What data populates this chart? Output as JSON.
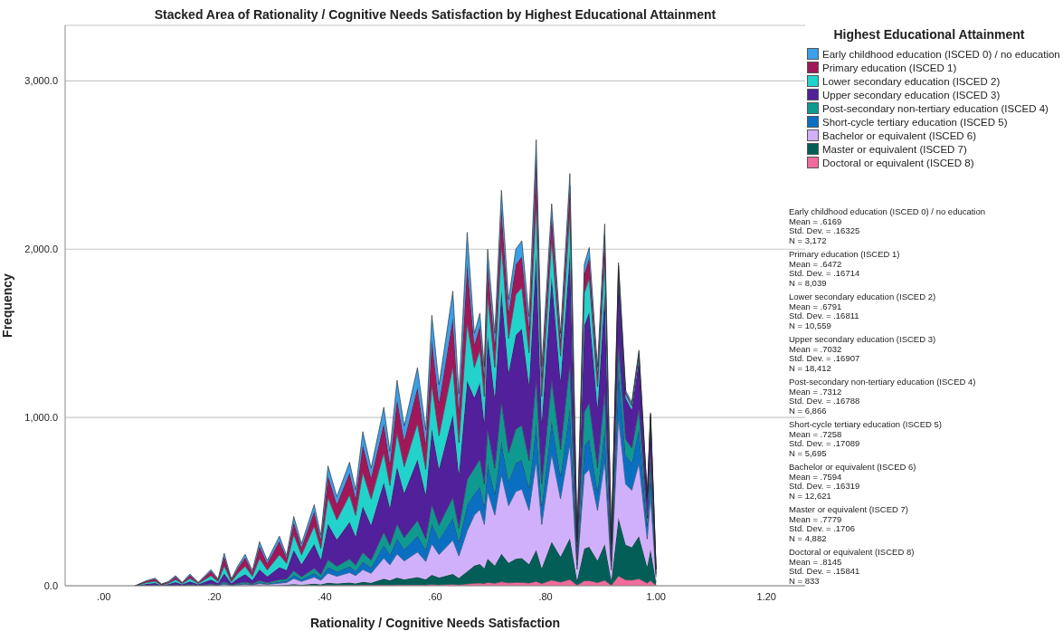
{
  "chart_data": {
    "type": "area",
    "stacked": true,
    "title": "Stacked Area of Rationality / Cognitive Needs Satisfaction by Highest Educational Attainment",
    "xlabel": "Rationality / Cognitive Needs Satisfaction",
    "ylabel": "Frequency",
    "legend_title": "Highest Educational Attainment",
    "legend": "top right",
    "grid": "y",
    "xlim": [
      -0.07,
      1.27
    ],
    "ylim": [
      0,
      3330
    ],
    "xticks": [
      {
        "value": 0,
        "label": ".00"
      },
      {
        "value": 0.2,
        "label": ".20"
      },
      {
        "value": 0.4,
        "label": ".40"
      },
      {
        "value": 0.6,
        "label": ".60"
      },
      {
        "value": 0.8,
        "label": ".80"
      },
      {
        "value": 1,
        "label": "1.00"
      },
      {
        "value": 1.2,
        "label": "1.20"
      }
    ],
    "yticks": [
      {
        "value": 0,
        "label": "0.0"
      },
      {
        "value": 1000,
        "label": "1,000.0"
      },
      {
        "value": 2000,
        "label": "2,000.0"
      },
      {
        "value": 3000,
        "label": "3,000.0"
      }
    ],
    "x": [
      0.057,
      0.077,
      0.093,
      0.104,
      0.117,
      0.13,
      0.142,
      0.156,
      0.171,
      0.194,
      0.207,
      0.218,
      0.231,
      0.243,
      0.256,
      0.269,
      0.282,
      0.296,
      0.318,
      0.331,
      0.344,
      0.358,
      0.381,
      0.393,
      0.406,
      0.422,
      0.445,
      0.456,
      0.469,
      0.484,
      0.507,
      0.518,
      0.531,
      0.544,
      0.568,
      0.583,
      0.594,
      0.607,
      0.632,
      0.643,
      0.658,
      0.671,
      0.681,
      0.689,
      0.695,
      0.708,
      0.72,
      0.733,
      0.746,
      0.757,
      0.77,
      0.783,
      0.793,
      0.811,
      0.827,
      0.844,
      0.857,
      0.87,
      0.879,
      0.894,
      0.907,
      0.919,
      0.932,
      0.945,
      0.956,
      0.969,
      0.984,
      0.99,
      1.0
    ],
    "series": [
      {
        "name": "Doctoral or equivalent (ISCED 8)",
        "color": "#f06c9c",
        "values": [
          0,
          0,
          0,
          0,
          0,
          0,
          0,
          0,
          0,
          0,
          0,
          0,
          0,
          0,
          0,
          0,
          0,
          0,
          0,
          1,
          2,
          1,
          2,
          2,
          4,
          3,
          4,
          3,
          5,
          4,
          5,
          4,
          6,
          5,
          6,
          5,
          8,
          6,
          9,
          6,
          11,
          15,
          16,
          13,
          20,
          15,
          24,
          17,
          20,
          20,
          16,
          26,
          13,
          34,
          22,
          37,
          4,
          29,
          30,
          19,
          32,
          4,
          58,
          35,
          33,
          42,
          16,
          31,
          3
        ]
      },
      {
        "name": "Master or equivalent (ISCED 7)",
        "color": "#035e58",
        "values": [
          0,
          0,
          0,
          0,
          0,
          1,
          0,
          1,
          0,
          1,
          0,
          2,
          0,
          1,
          2,
          1,
          3,
          2,
          3,
          4,
          8,
          5,
          10,
          6,
          14,
          11,
          15,
          11,
          18,
          14,
          37,
          28,
          43,
          33,
          45,
          32,
          56,
          42,
          61,
          40,
          74,
          105,
          113,
          91,
          140,
          105,
          165,
          119,
          140,
          144,
          112,
          186,
          91,
          227,
          150,
          245,
          28,
          191,
          201,
          130,
          215,
          27,
          346,
          209,
          196,
          252,
          96,
          185,
          18
        ]
      },
      {
        "name": "Bachelor or equivalent (ISCED 6)",
        "color": "#d1b0fb",
        "values": [
          0,
          1,
          2,
          0,
          1,
          2,
          1,
          3,
          1,
          4,
          2,
          8,
          2,
          5,
          7,
          4,
          10,
          6,
          12,
          14,
          33,
          20,
          39,
          24,
          57,
          42,
          59,
          46,
          73,
          56,
          122,
          92,
          140,
          109,
          149,
          107,
          185,
          137,
          201,
          131,
          241,
          300,
          324,
          260,
          400,
          300,
          470,
          340,
          400,
          410,
          320,
          530,
          260,
          522,
          345,
          563,
          65,
          439,
          462,
          299,
          495,
          62,
          595,
          360,
          338,
          434,
          166,
          319,
          31
        ]
      },
      {
        "name": "Short-cycle tertiary education (ISCED 5)",
        "color": "#0a6fc0",
        "values": [
          0,
          1,
          1,
          0,
          1,
          2,
          1,
          2,
          1,
          3,
          1,
          6,
          1,
          4,
          6,
          3,
          8,
          4,
          9,
          9,
          21,
          12,
          24,
          15,
          36,
          27,
          37,
          28,
          46,
          35,
          80,
          60,
          92,
          71,
          97,
          70,
          121,
          90,
          131,
          86,
          157,
          128,
          138,
          111,
          170,
          128,
          200,
          144,
          170,
          174,
          136,
          225,
          111,
          204,
          135,
          220,
          26,
          172,
          181,
          117,
          194,
          24,
          288,
          174,
          164,
          210,
          80,
          154,
          15
        ]
      },
      {
        "name": "Post-secondary non-tertiary education (ISCED 4)",
        "color": "#0f9a90",
        "values": [
          0,
          1,
          2,
          0,
          1,
          2,
          1,
          3,
          1,
          4,
          2,
          8,
          2,
          5,
          7,
          4,
          10,
          6,
          12,
          11,
          25,
          15,
          29,
          18,
          43,
          32,
          44,
          34,
          55,
          42,
          74,
          56,
          85,
          67,
          91,
          65,
          112,
          84,
          123,
          80,
          147,
          150,
          162,
          130,
          200,
          150,
          235,
          170,
          200,
          205,
          160,
          265,
          130,
          238,
          158,
          257,
          30,
          200,
          211,
          137,
          226,
          28,
          154,
          93,
          87,
          112,
          43,
          82,
          8
        ]
      },
      {
        "name": "Upper secondary education (ISCED 3)",
        "color": "#51209a",
        "values": [
          0,
          8,
          11,
          3,
          6,
          15,
          5,
          17,
          5,
          24,
          10,
          48,
          10,
          30,
          47,
          22,
          66,
          37,
          74,
          54,
          124,
          75,
          145,
          90,
          214,
          159,
          220,
          171,
          275,
          210,
          297,
          224,
          342,
          266,
          363,
          260,
          450,
          335,
          490,
          319,
          588,
          420,
          454,
          364,
          560,
          420,
          658,
          476,
          560,
          574,
          448,
          742,
          364,
          613,
          405,
          662,
          77,
          516,
          543,
          351,
          580,
          72,
          403,
          244,
          229,
          294,
          113,
          216,
          21
        ]
      },
      {
        "name": "Lower secondary education (ISCED 2)",
        "color": "#22d3cc",
        "values": [
          0,
          8,
          11,
          3,
          6,
          15,
          5,
          18,
          5,
          24,
          10,
          48,
          10,
          30,
          47,
          22,
          66,
          38,
          74,
          40,
          91,
          55,
          106,
          66,
          157,
          117,
          161,
          125,
          202,
          154,
          175,
          132,
          201,
          157,
          214,
          153,
          265,
          197,
          289,
          188,
          347,
          180,
          194,
          156,
          240,
          180,
          282,
          204,
          240,
          246,
          192,
          318,
          156,
          227,
          150,
          245,
          28,
          191,
          201,
          130,
          215,
          27,
          38,
          23,
          22,
          28,
          11,
          21,
          2
        ]
      },
      {
        "name": "Primary education (ISCED 1)",
        "color": "#a0185a",
        "values": [
          0,
          8,
          13,
          3,
          7,
          17,
          5,
          19,
          5,
          27,
          11,
          54,
          11,
          33,
          52,
          25,
          73,
          42,
          82,
          32,
          74,
          45,
          87,
          54,
          128,
          95,
          132,
          103,
          165,
          126,
          175,
          132,
          201,
          157,
          214,
          153,
          265,
          197,
          289,
          188,
          347,
          135,
          146,
          117,
          180,
          135,
          211,
          153,
          180,
          184,
          144,
          239,
          117,
          137,
          90,
          147,
          17,
          115,
          121,
          78,
          129,
          16,
          19,
          11,
          10,
          14,
          5,
          10,
          1
        ]
      },
      {
        "name": "Early childhood education (ISCED 0) / no education",
        "color": "#3aa0e8",
        "values": [
          0,
          3,
          5,
          1,
          3,
          6,
          2,
          7,
          2,
          9,
          4,
          19,
          4,
          12,
          19,
          9,
          26,
          15,
          29,
          15,
          34,
          22,
          40,
          25,
          59,
          44,
          62,
          49,
          77,
          59,
          96,
          72,
          111,
          85,
          117,
          82,
          145,
          107,
          158,
          103,
          188,
          67,
          73,
          58,
          90,
          67,
          105,
          77,
          90,
          93,
          72,
          119,
          58,
          68,
          45,
          74,
          9,
          57,
          60,
          39,
          64,
          8,
          19,
          11,
          11,
          14,
          6,
          10,
          1
        ]
      }
    ],
    "annotations": [
      "Early childhood education (ISCED 0) / no education\nMean = .6169\nStd. Dev. = .16325\nN = 3,172",
      "Primary education (ISCED 1)\nMean = .6472\nStd. Dev. = .16714\nN = 8,039",
      "Lower secondary education (ISCED 2)\nMean = .6791\nStd. Dev. = .16811\nN = 10,559",
      "Upper secondary education (ISCED 3)\nMean = .7032\nStd. Dev. = .16907\nN = 18,412",
      "Post-secondary non-tertiary education (ISCED 4)\nMean = .7312\nStd. Dev. = .16788\nN = 6,866",
      "Short-cycle tertiary education (ISCED 5)\nMean = .7258\nStd. Dev. = .17089\nN = 5,695",
      "Bachelor or equivalent (ISCED 6)\nMean = .7594\nStd. Dev. = .16319\nN = 12,621",
      "Master or equivalent (ISCED 7)\nMean = .7779\nStd. Dev. = .1706\nN = 4,882",
      "Doctoral or equivalent (ISCED 8)\nMean = .8145\nStd. Dev. = .15841\nN = 833"
    ]
  }
}
